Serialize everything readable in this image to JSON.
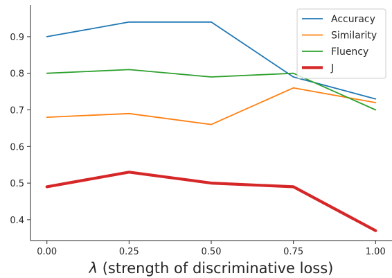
{
  "chart_data": {
    "type": "line",
    "title": "",
    "xlabel": "λ (strength of discriminative loss)",
    "ylabel": "",
    "x": [
      0.0,
      0.25,
      0.5,
      0.75,
      1.0
    ],
    "xticks": [
      "0.00",
      "0.25",
      "0.50",
      "0.75",
      "1.00"
    ],
    "yticks": [
      "0.4",
      "0.5",
      "0.6",
      "0.7",
      "0.8",
      "0.9"
    ],
    "xlim": [
      -0.05,
      1.05
    ],
    "ylim": [
      0.343,
      0.987
    ],
    "grid": false,
    "legend_position": "top-right",
    "series": [
      {
        "name": "Accuracy",
        "color": "#1f77b4",
        "width": "normal",
        "values": [
          0.9,
          0.94,
          0.94,
          0.79,
          0.73
        ]
      },
      {
        "name": "Similarity",
        "color": "#ff7f0e",
        "width": "normal",
        "values": [
          0.68,
          0.69,
          0.66,
          0.76,
          0.72
        ]
      },
      {
        "name": "Fluency",
        "color": "#2ca02c",
        "width": "normal",
        "values": [
          0.8,
          0.81,
          0.79,
          0.8,
          0.7
        ]
      },
      {
        "name": "J",
        "color": "#d62728",
        "width": "thick",
        "values": [
          0.49,
          0.53,
          0.5,
          0.49,
          0.37
        ]
      }
    ]
  }
}
